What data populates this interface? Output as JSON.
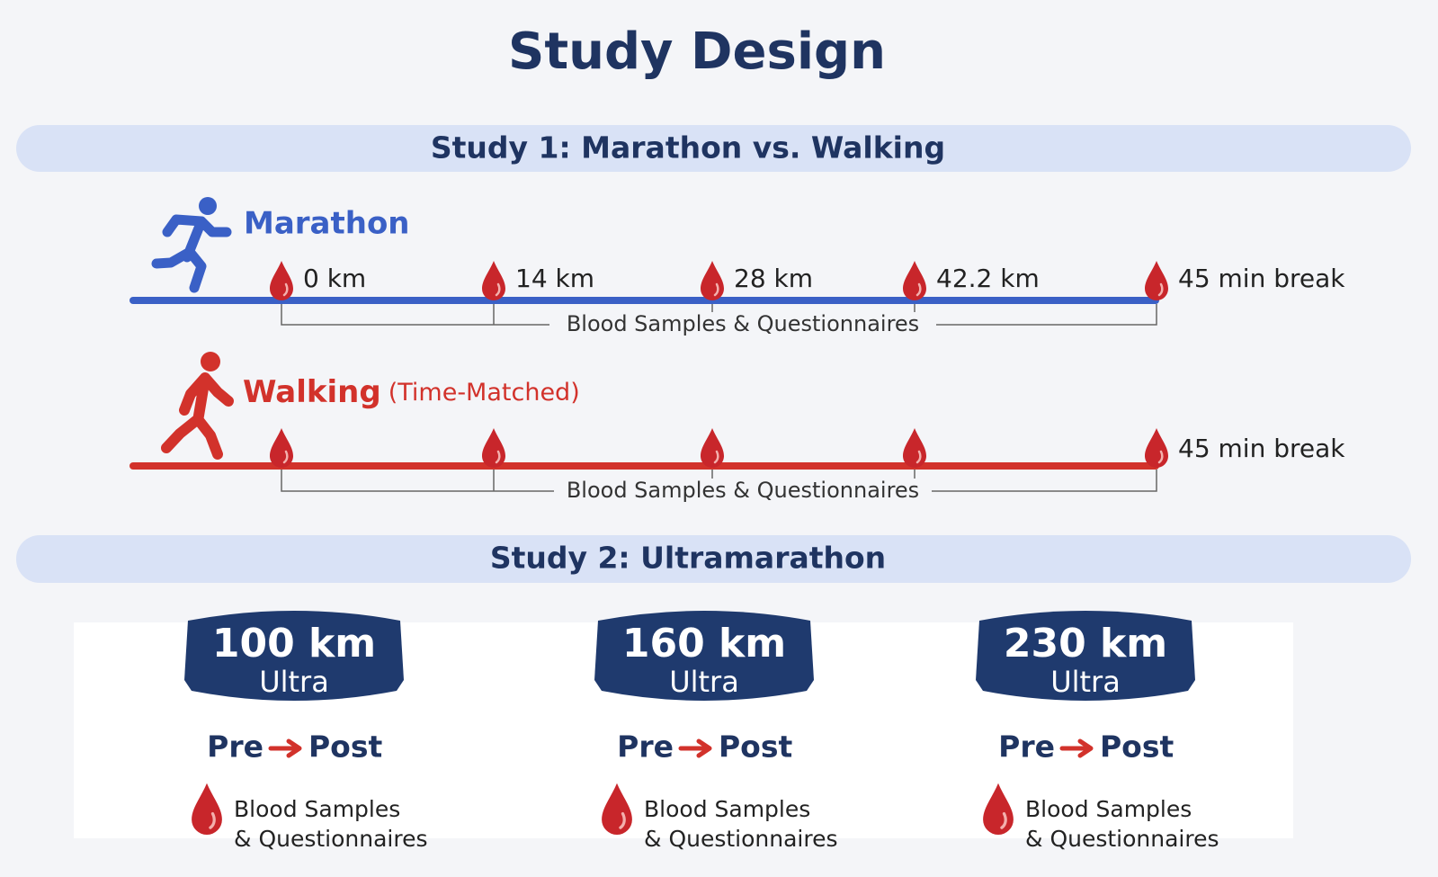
{
  "title": "Study Design",
  "study1": {
    "title": "Study 1: Marathon vs. Walking",
    "marathon": {
      "label": "Marathon",
      "checkpoints": [
        "0 km",
        "14 km",
        "28 km",
        "42.2 km",
        "45 min break"
      ],
      "bracket_label": "Blood Samples & Questionnaires"
    },
    "walking": {
      "label": "Walking",
      "sublabel": "(Time-Matched)",
      "end_label": "45 min break",
      "bracket_label": "Blood Samples & Questionnaires"
    }
  },
  "study2": {
    "title": "Study 2: Ultramarathon",
    "races": [
      {
        "distance": "100 km",
        "type": "Ultra",
        "pre": "Pre",
        "post": "Post",
        "samples": [
          "Blood Samples",
          "& Questionnaires"
        ]
      },
      {
        "distance": "160 km",
        "type": "Ultra",
        "pre": "Pre",
        "post": "Post",
        "samples": [
          "Blood Samples",
          "& Questionnaires"
        ]
      },
      {
        "distance": "230 km",
        "type": "Ultra",
        "pre": "Pre",
        "post": "Post",
        "samples": [
          "Blood Samples",
          "& Questionnaires"
        ]
      }
    ]
  }
}
